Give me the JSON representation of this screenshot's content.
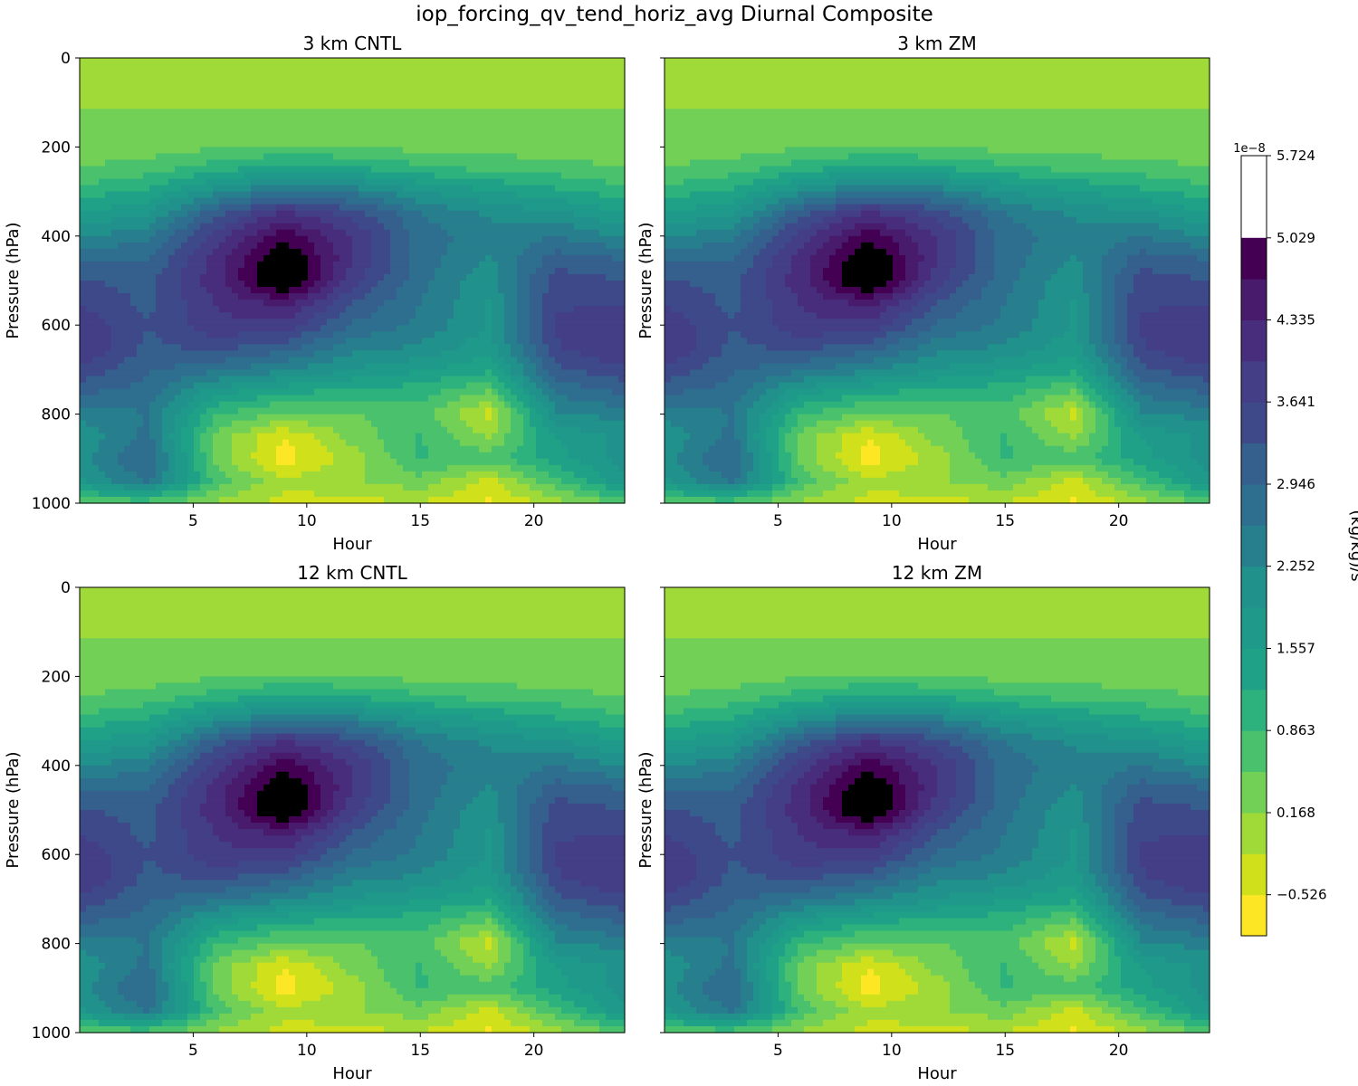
{
  "figure": {
    "title": "iop_forcing_qv_tend_horiz_avg Diurnal Composite"
  },
  "colorbar": {
    "label": "(kg/kg)/s",
    "exponent": "1e−8",
    "tick_labels": [
      "−0.526",
      "0.168",
      "0.863",
      "1.557",
      "2.252",
      "2.946",
      "3.641",
      "4.335",
      "5.029",
      "5.724"
    ],
    "levels": [
      -0.873,
      -0.526,
      -0.179,
      0.168,
      0.516,
      0.863,
      1.21,
      1.557,
      1.905,
      2.252,
      2.599,
      2.946,
      3.294,
      3.641,
      3.988,
      4.335,
      4.682,
      5.029,
      5.377,
      5.724
    ],
    "colors": [
      "#fde725",
      "#d0e11c",
      "#a0da39",
      "#73d056",
      "#4ac16d",
      "#2db27d",
      "#1fa187",
      "#1f9a8a",
      "#21918c",
      "#277f8e",
      "#2e6e8e",
      "#355f8d",
      "#3e4989",
      "#433e85",
      "#472d7b",
      "#481b6d",
      "#440154"
    ]
  },
  "panels": [
    {
      "title": "3 km CNTL",
      "xlabel": "Hour",
      "ylabel": "Pressure (hPa)"
    },
    {
      "title": "3 km ZM",
      "xlabel": "Hour",
      "ylabel": "Pressure (hPa)"
    },
    {
      "title": "12 km CNTL",
      "xlabel": "Hour",
      "ylabel": "Pressure (hPa)"
    },
    {
      "title": "12 km ZM",
      "xlabel": "Hour",
      "ylabel": "Pressure (hPa)"
    }
  ],
  "axes": {
    "x_ticks": [
      "5",
      "10",
      "15",
      "20"
    ],
    "y_ticks": [
      "0",
      "200",
      "400",
      "600",
      "800",
      "1000"
    ]
  },
  "chart_data": {
    "type": "heatmap",
    "title": "iop_forcing_qv_tend_horiz_avg Diurnal Composite",
    "xlabel": "Hour",
    "ylabel": "Pressure (hPa)",
    "xlim": [
      0,
      24
    ],
    "ylim": [
      1000,
      0
    ],
    "value_units": "(kg/kg)/s × 1e−8",
    "value_range": [
      -0.873,
      5.724
    ],
    "hours": [
      0,
      3,
      6,
      9,
      12,
      15,
      18,
      21,
      24
    ],
    "pressures": [
      0,
      150,
      200,
      250,
      300,
      350,
      400,
      450,
      500,
      550,
      600,
      650,
      700,
      750,
      800,
      850,
      900,
      950,
      1000
    ],
    "values": [
      [
        0.16,
        0.16,
        0.16,
        0.16,
        0.16,
        0.16,
        0.16,
        0.16,
        0.16
      ],
      [
        0.17,
        0.17,
        0.17,
        0.17,
        0.17,
        0.17,
        0.17,
        0.17,
        0.17
      ],
      [
        0.25,
        0.35,
        0.45,
        0.55,
        0.5,
        0.4,
        0.35,
        0.3,
        0.25
      ],
      [
        0.55,
        0.7,
        1.1,
        1.4,
        1.3,
        1.0,
        0.8,
        0.7,
        0.55
      ],
      [
        1.0,
        1.3,
        2.1,
        2.7,
        2.5,
        1.9,
        1.6,
        1.3,
        1.0
      ],
      [
        1.6,
        1.9,
        3.2,
        4.1,
        3.5,
        2.6,
        2.2,
        2.0,
        1.6
      ],
      [
        2.2,
        2.5,
        3.8,
        4.9,
        4.0,
        2.8,
        2.4,
        2.6,
        2.2
      ],
      [
        2.9,
        2.9,
        4.1,
        5.5,
        4.0,
        2.8,
        2.2,
        3.1,
        2.9
      ],
      [
        3.3,
        3.2,
        4.2,
        5.7,
        3.8,
        2.7,
        2.0,
        3.5,
        3.3
      ],
      [
        3.6,
        3.2,
        4.0,
        4.5,
        3.3,
        2.6,
        1.9,
        3.6,
        3.6
      ],
      [
        3.9,
        3.3,
        3.9,
        3.9,
        2.9,
        2.5,
        1.9,
        3.7,
        3.9
      ],
      [
        4.0,
        3.2,
        3.4,
        3.1,
        2.4,
        2.2,
        1.7,
        3.6,
        4.0
      ],
      [
        3.6,
        3.0,
        2.7,
        2.3,
        1.9,
        1.6,
        1.3,
        3.2,
        3.6
      ],
      [
        3.0,
        2.8,
        1.7,
        1.3,
        1.1,
        1.0,
        0.5,
        2.7,
        3.0
      ],
      [
        2.4,
        2.6,
        0.9,
        0.4,
        0.5,
        0.7,
        -0.3,
        2.2,
        2.4
      ],
      [
        2.0,
        2.7,
        0.4,
        -0.5,
        0.3,
        0.9,
        0.1,
        1.6,
        2.0
      ],
      [
        2.1,
        3.0,
        0.4,
        -0.7,
        0.0,
        0.9,
        0.7,
        1.4,
        2.1
      ],
      [
        1.8,
        2.7,
        0.7,
        -0.1,
        0.1,
        0.4,
        -0.3,
        0.8,
        1.8
      ],
      [
        0.6,
        0.6,
        0.1,
        -0.3,
        -0.3,
        -0.2,
        -0.6,
        0.0,
        0.6
      ]
    ],
    "grid": false,
    "colormap": "viridis_r",
    "colorbar_placement": "right"
  }
}
